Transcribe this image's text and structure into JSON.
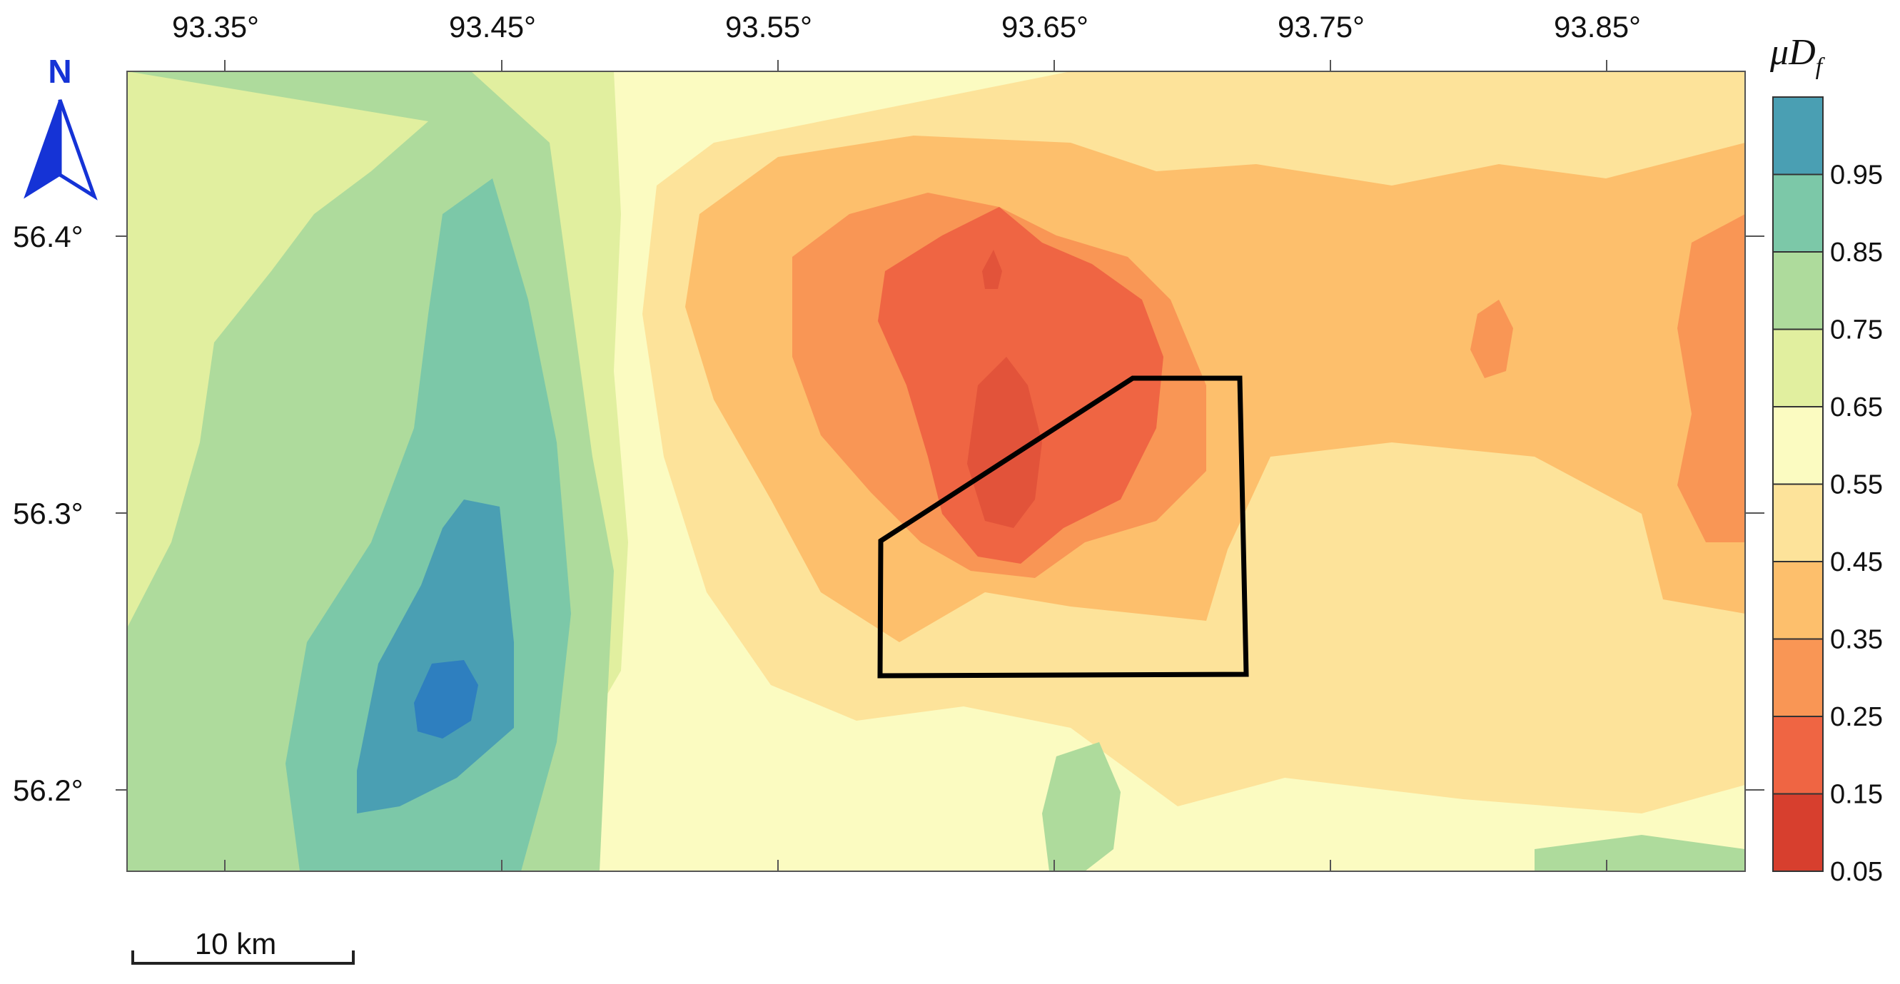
{
  "map": {
    "lon_ticks": [
      "93.35°",
      "93.45°",
      "93.55°",
      "93.65°",
      "93.75°",
      "93.85°"
    ],
    "lat_ticks": [
      "56.4°",
      "56.3°",
      "56.2°"
    ],
    "north_label": "N",
    "scale_bar_label": "10 km",
    "colorbar": {
      "title_main": "μD",
      "title_sub": "f",
      "labels": [
        "0.95",
        "0.85",
        "0.75",
        "0.65",
        "0.55",
        "0.45",
        "0.35",
        "0.25",
        "0.15",
        "0.05"
      ],
      "colors": [
        "#4a9fb3",
        "#7cc8a8",
        "#aedb9c",
        "#e1ef9f",
        "#fbfbc1",
        "#fde39a",
        "#fdbf6c",
        "#f99655",
        "#ef6543",
        "#d73f2e"
      ]
    },
    "palette": {
      "c_05": "#d73f2e",
      "c_15": "#ef6543",
      "c_25": "#f99655",
      "c_35": "#fdbf6c",
      "c_45": "#fde39a",
      "c_55": "#fbfbc1",
      "c_65": "#e1ef9f",
      "c_75": "#aedb9c",
      "c_85": "#7cc8a8",
      "c_95": "#4a9fb3",
      "c_top": "#2e7fbf"
    }
  }
}
